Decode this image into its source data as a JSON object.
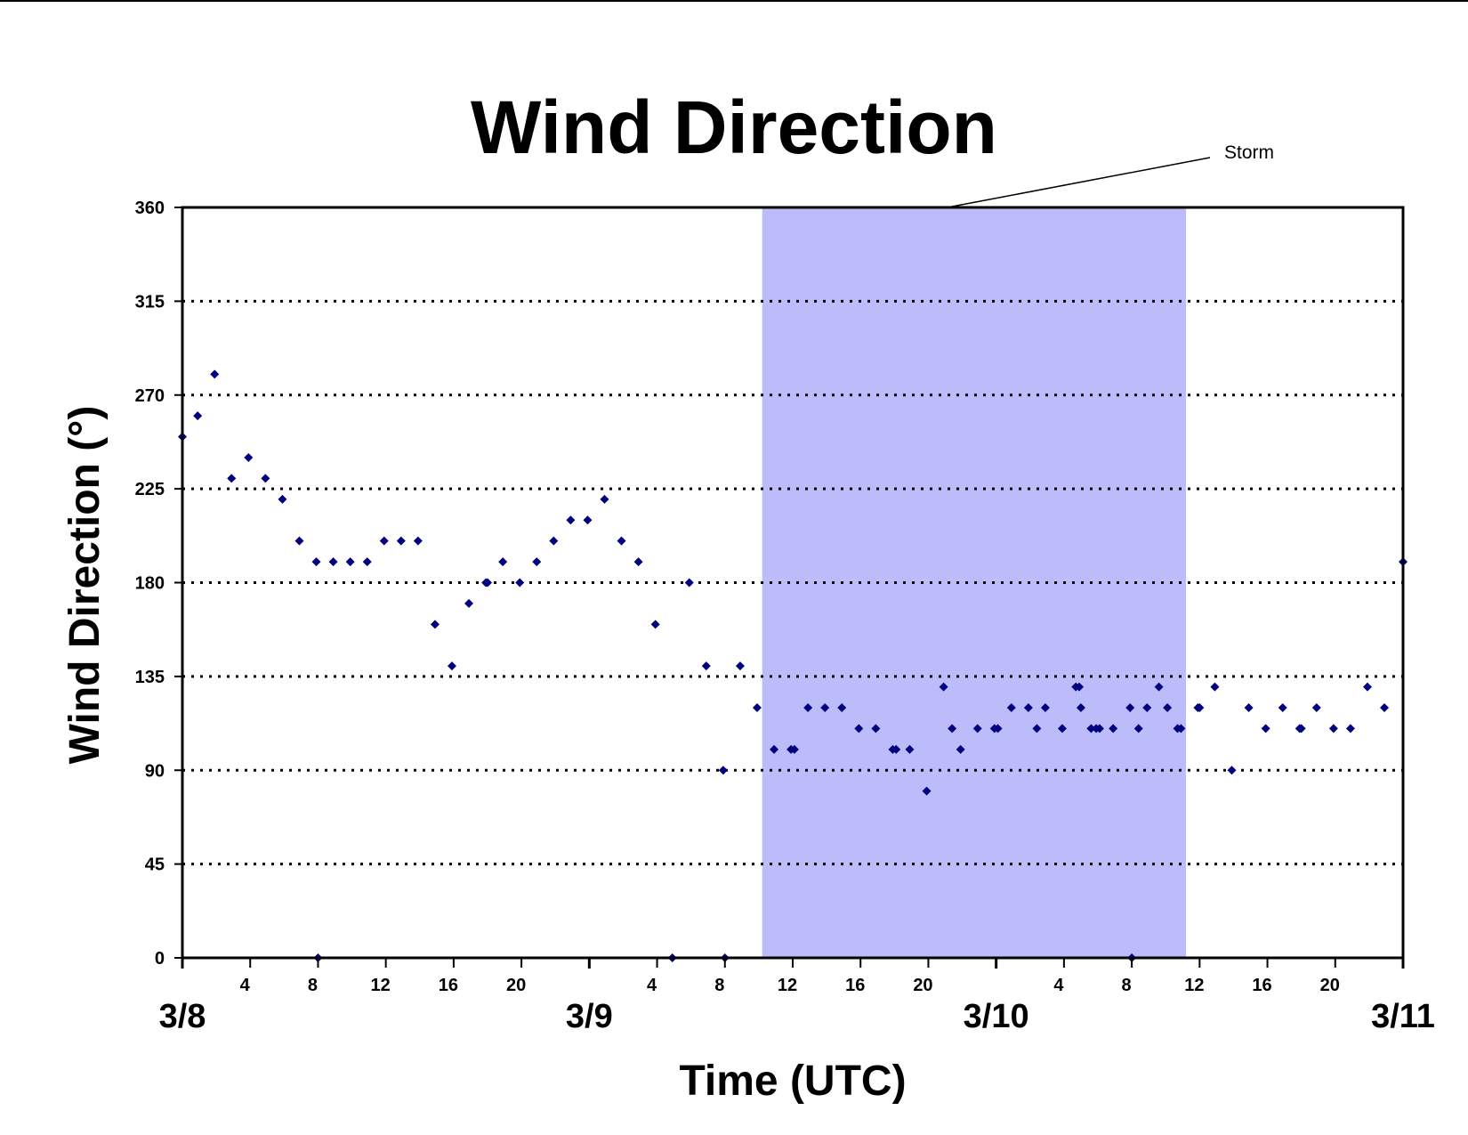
{
  "chart_data": {
    "type": "scatter",
    "title": "Wind Direction",
    "xlabel": "Time (UTC)",
    "ylabel": "Wind Direction (°)",
    "ylim": [
      0,
      360
    ],
    "yticks": [
      0,
      45,
      90,
      135,
      180,
      225,
      270,
      315,
      360
    ],
    "xlim_hours": [
      0,
      72
    ],
    "hour_ticks": [
      {
        "h": 4,
        "label": "4"
      },
      {
        "h": 8,
        "label": "8"
      },
      {
        "h": 12,
        "label": "12"
      },
      {
        "h": 16,
        "label": "16"
      },
      {
        "h": 20,
        "label": "20"
      },
      {
        "h": 28,
        "label": "4"
      },
      {
        "h": 32,
        "label": "8"
      },
      {
        "h": 36,
        "label": "12"
      },
      {
        "h": 40,
        "label": "16"
      },
      {
        "h": 44,
        "label": "20"
      },
      {
        "h": 52,
        "label": "4"
      },
      {
        "h": 56,
        "label": "8"
      },
      {
        "h": 60,
        "label": "12"
      },
      {
        "h": 64,
        "label": "16"
      },
      {
        "h": 68,
        "label": "20"
      }
    ],
    "day_ticks": [
      {
        "h": 0,
        "label": "3/8"
      },
      {
        "h": 24,
        "label": "3/9"
      },
      {
        "h": 48,
        "label": "3/10"
      },
      {
        "h": 72,
        "label": "3/11"
      }
    ],
    "grid": "horizontal dotted",
    "shaded_region": {
      "start": 34.2,
      "end": 59.2,
      "color": "#bcbcfb",
      "label": "Storm"
    },
    "marker_color": "#00007f",
    "points": [
      [
        0,
        250
      ],
      [
        0.9,
        260
      ],
      [
        1.9,
        280
      ],
      [
        2.9,
        230
      ],
      [
        3.9,
        240
      ],
      [
        4.9,
        230
      ],
      [
        5.9,
        220
      ],
      [
        6.9,
        200
      ],
      [
        7.9,
        190
      ],
      [
        8,
        0
      ],
      [
        8.9,
        190
      ],
      [
        9.9,
        190
      ],
      [
        10.9,
        190
      ],
      [
        11.9,
        200
      ],
      [
        12.9,
        200
      ],
      [
        13.9,
        200
      ],
      [
        14.9,
        160
      ],
      [
        15.9,
        140
      ],
      [
        16.9,
        170
      ],
      [
        17.9,
        180
      ],
      [
        18,
        180
      ],
      [
        18.9,
        190
      ],
      [
        19.9,
        180
      ],
      [
        20.9,
        190
      ],
      [
        21.9,
        200
      ],
      [
        22.9,
        210
      ],
      [
        23.9,
        210
      ],
      [
        24.9,
        220
      ],
      [
        25.9,
        200
      ],
      [
        26.9,
        190
      ],
      [
        27.9,
        160
      ],
      [
        28.9,
        0
      ],
      [
        29.9,
        180
      ],
      [
        30.9,
        140
      ],
      [
        31.9,
        90
      ],
      [
        32,
        0
      ],
      [
        32.9,
        140
      ],
      [
        33.9,
        120
      ],
      [
        34.9,
        100
      ],
      [
        35.9,
        100
      ],
      [
        36.1,
        100
      ],
      [
        36.9,
        120
      ],
      [
        37.9,
        120
      ],
      [
        38.9,
        120
      ],
      [
        39.9,
        110
      ],
      [
        40.9,
        110
      ],
      [
        41.9,
        100
      ],
      [
        42.1,
        100
      ],
      [
        42.9,
        100
      ],
      [
        43.9,
        80
      ],
      [
        44.9,
        130
      ],
      [
        45.4,
        110
      ],
      [
        45.9,
        100
      ],
      [
        46.9,
        110
      ],
      [
        47.9,
        110
      ],
      [
        48.1,
        110
      ],
      [
        48.9,
        120
      ],
      [
        49.9,
        120
      ],
      [
        50.4,
        110
      ],
      [
        50.9,
        120
      ],
      [
        51.9,
        110
      ],
      [
        52.7,
        130
      ],
      [
        52.9,
        130
      ],
      [
        53,
        120
      ],
      [
        53.6,
        110
      ],
      [
        53.9,
        110
      ],
      [
        54.1,
        110
      ],
      [
        54.9,
        110
      ],
      [
        55.9,
        120
      ],
      [
        56,
        0
      ],
      [
        56.4,
        110
      ],
      [
        56.9,
        120
      ],
      [
        57.6,
        130
      ],
      [
        58.1,
        120
      ],
      [
        58.7,
        110
      ],
      [
        58.9,
        110
      ],
      [
        59.9,
        120
      ],
      [
        60,
        120
      ],
      [
        60.9,
        130
      ],
      [
        61.9,
        90
      ],
      [
        62.9,
        120
      ],
      [
        63.9,
        110
      ],
      [
        64.9,
        120
      ],
      [
        65.9,
        110
      ],
      [
        66,
        110
      ],
      [
        66.9,
        120
      ],
      [
        67.9,
        110
      ],
      [
        68.9,
        110
      ],
      [
        69.9,
        130
      ],
      [
        70.9,
        120
      ],
      [
        72,
        190
      ]
    ]
  }
}
